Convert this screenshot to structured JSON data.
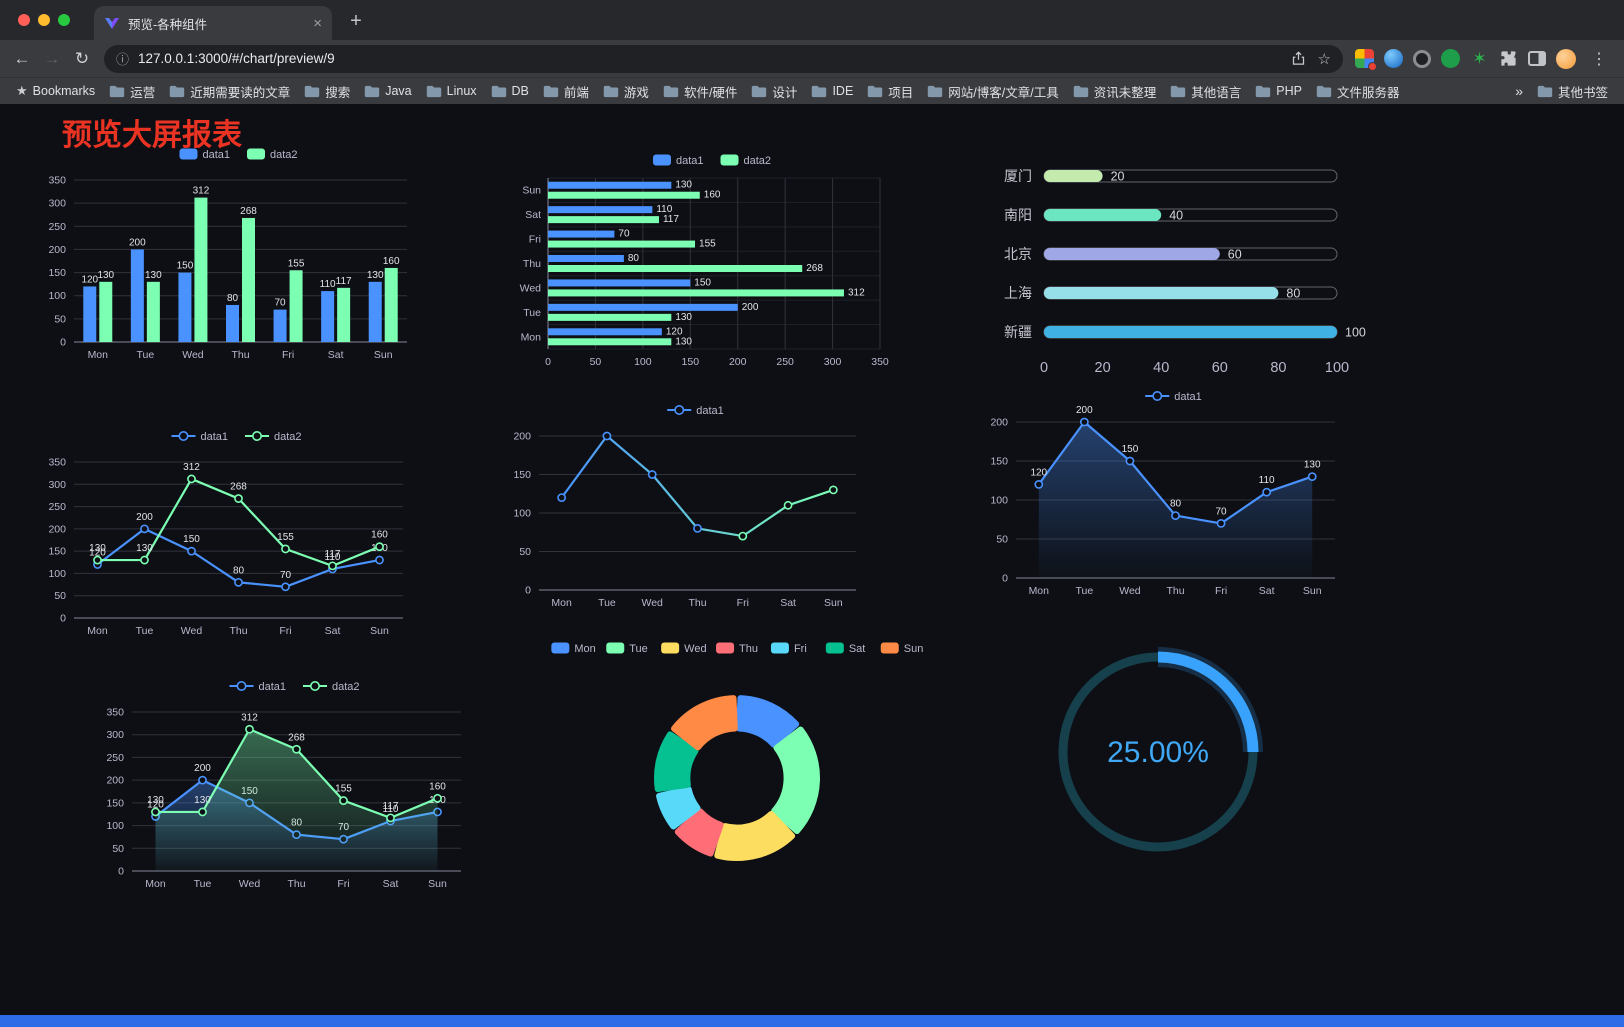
{
  "browser": {
    "tab_title": "预览-各种组件",
    "new_tab_label": "+",
    "close_label": "×",
    "url": "127.0.0.1:3000/#/chart/preview/9",
    "bookmarks_label": "Bookmarks",
    "bookmarks": [
      "运营",
      "近期需要读的文章",
      "搜索",
      "Java",
      "Linux",
      "DB",
      "前端",
      "游戏",
      "软件/硬件",
      "设计",
      "IDE",
      "项目",
      "网站/博客/文章/工具",
      "资讯未整理",
      "其他语言",
      "PHP",
      "文件服务器"
    ],
    "bookmarks_overflow": "»",
    "other_bookmarks": "其他书签"
  },
  "page": {
    "title": "预览大屏报表",
    "title_color": "#ea3323",
    "background": "#0d0f14",
    "bottom_bar_color": "#2e6be6"
  },
  "chart_data": [
    {
      "id": "bar-vertical",
      "type": "bar",
      "categories": [
        "Mon",
        "Tue",
        "Wed",
        "Thu",
        "Fri",
        "Sat",
        "Sun"
      ],
      "series": [
        {
          "name": "data1",
          "color": "#4992ff",
          "values": [
            120,
            200,
            150,
            80,
            70,
            110,
            130
          ]
        },
        {
          "name": "data2",
          "color": "#7cffb2",
          "values": [
            130,
            130,
            312,
            268,
            155,
            117,
            160
          ]
        }
      ],
      "ylim": [
        0,
        350
      ],
      "ytick_step": 50,
      "legend_position": "top",
      "grid": true,
      "value_labels": true
    },
    {
      "id": "bar-horizontal",
      "type": "bar-horizontal",
      "categories": [
        "Mon",
        "Tue",
        "Wed",
        "Thu",
        "Fri",
        "Sat",
        "Sun"
      ],
      "series": [
        {
          "name": "data1",
          "color": "#4992ff",
          "values": [
            120,
            200,
            150,
            80,
            70,
            110,
            130
          ]
        },
        {
          "name": "data2",
          "color": "#7cffb2",
          "values": [
            130,
            130,
            312,
            268,
            155,
            117,
            160
          ]
        }
      ],
      "xlim": [
        0,
        350
      ],
      "xtick_step": 50,
      "legend_position": "top",
      "grid": true,
      "value_labels": true
    },
    {
      "id": "capsule-progress",
      "type": "capsule-bar",
      "categories": [
        "厦门",
        "南阳",
        "北京",
        "上海",
        "新疆"
      ],
      "values": [
        20,
        40,
        60,
        80,
        100
      ],
      "colors": [
        "#c4ebad",
        "#6be6c1",
        "#a0a7e6",
        "#96dee8",
        "#3fb1e3"
      ],
      "xlim": [
        0,
        100
      ],
      "xticks": [
        0,
        20,
        40,
        60,
        80,
        100
      ],
      "value_labels": true
    },
    {
      "id": "line-two-series",
      "type": "line",
      "categories": [
        "Mon",
        "Tue",
        "Wed",
        "Thu",
        "Fri",
        "Sat",
        "Sun"
      ],
      "series": [
        {
          "name": "data1",
          "color": "#4992ff",
          "values": [
            120,
            200,
            150,
            80,
            70,
            110,
            130
          ]
        },
        {
          "name": "data2",
          "color": "#7cffb2",
          "values": [
            130,
            130,
            312,
            268,
            155,
            117,
            160
          ]
        }
      ],
      "ylim": [
        0,
        350
      ],
      "ytick_step": 50,
      "legend_position": "top",
      "grid": true,
      "value_labels": true
    },
    {
      "id": "line-gradient",
      "type": "line",
      "categories": [
        "Mon",
        "Tue",
        "Wed",
        "Thu",
        "Fri",
        "Sat",
        "Sun"
      ],
      "series": [
        {
          "name": "data1",
          "gradient": [
            "#4992ff",
            "#7cffb2"
          ],
          "values": [
            120,
            200,
            150,
            80,
            70,
            110,
            130
          ]
        }
      ],
      "ylim": [
        0,
        200
      ],
      "ytick_step": 50,
      "legend_position": "top",
      "grid": true,
      "value_labels": false
    },
    {
      "id": "area-single",
      "type": "line",
      "categories": [
        "Mon",
        "Tue",
        "Wed",
        "Thu",
        "Fri",
        "Sat",
        "Sun"
      ],
      "series": [
        {
          "name": "data1",
          "color": "#4992ff",
          "area": true,
          "values": [
            120,
            200,
            150,
            80,
            70,
            110,
            130
          ]
        }
      ],
      "ylim": [
        0,
        200
      ],
      "ytick_step": 50,
      "legend_position": "top",
      "grid": true,
      "value_labels": true
    },
    {
      "id": "line-area-two",
      "type": "line",
      "categories": [
        "Mon",
        "Tue",
        "Wed",
        "Thu",
        "Fri",
        "Sat",
        "Sun"
      ],
      "series": [
        {
          "name": "data1",
          "color": "#4992ff",
          "area": true,
          "values": [
            120,
            200,
            150,
            80,
            70,
            110,
            130
          ]
        },
        {
          "name": "data2",
          "color": "#7cffb2",
          "area": true,
          "values": [
            130,
            130,
            312,
            268,
            155,
            117,
            160
          ]
        }
      ],
      "ylim": [
        0,
        350
      ],
      "ytick_step": 50,
      "legend_position": "top",
      "grid": true,
      "value_labels": true
    },
    {
      "id": "donut",
      "type": "pie",
      "categories": [
        "Mon",
        "Tue",
        "Wed",
        "Thu",
        "Fri",
        "Sat",
        "Sun"
      ],
      "values": [
        120,
        200,
        150,
        80,
        70,
        110,
        130
      ],
      "colors": [
        "#4992ff",
        "#7cffb2",
        "#fddd60",
        "#ff6e76",
        "#58d9f9",
        "#05c091",
        "#ff8a45"
      ],
      "inner_radius_ratio": 0.62,
      "legend_position": "top"
    },
    {
      "id": "gauge",
      "type": "gauge",
      "percent": 25,
      "label": "25.00%",
      "arc_color": "#38a2fc",
      "track_color": "#17404d",
      "label_color": "#40a8f5"
    }
  ]
}
